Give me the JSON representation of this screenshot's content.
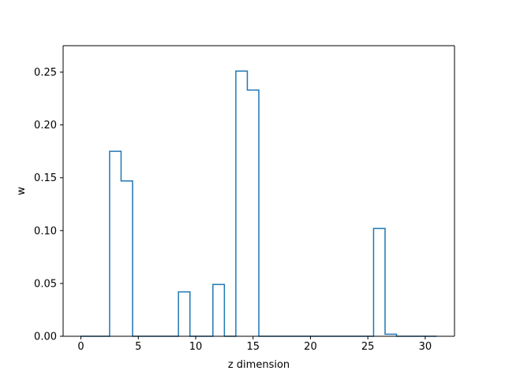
{
  "chart_data": {
    "type": "line",
    "drawstyle": "steps-mid",
    "title": "",
    "xlabel": "z dimension",
    "ylabel": "w",
    "xlim": [
      -1.55,
      32.55
    ],
    "ylim": [
      0,
      0.275
    ],
    "xticks": [
      0,
      5,
      10,
      15,
      20,
      25,
      30
    ],
    "xtick_labels": [
      "0",
      "5",
      "10",
      "15",
      "20",
      "25",
      "30"
    ],
    "yticks": [
      0.0,
      0.05,
      0.1,
      0.15,
      0.2,
      0.25
    ],
    "ytick_labels": [
      "0.00",
      "0.05",
      "0.10",
      "0.15",
      "0.20",
      "0.25"
    ],
    "grid": false,
    "series": [
      {
        "color": "#1f77b4",
        "x": [
          0,
          1,
          2,
          3,
          4,
          5,
          6,
          7,
          8,
          9,
          10,
          11,
          12,
          13,
          14,
          15,
          16,
          17,
          18,
          19,
          20,
          21,
          22,
          23,
          24,
          25,
          26,
          27,
          28,
          29,
          30,
          31
        ],
        "values": [
          0,
          0,
          0,
          0.175,
          0.147,
          0,
          0,
          0,
          0,
          0.042,
          0,
          0,
          0.049,
          0,
          0.251,
          0.233,
          0,
          0,
          0,
          0,
          0,
          0,
          0,
          0,
          0,
          0,
          0.102,
          0.002,
          0,
          0,
          0,
          0
        ]
      }
    ]
  }
}
